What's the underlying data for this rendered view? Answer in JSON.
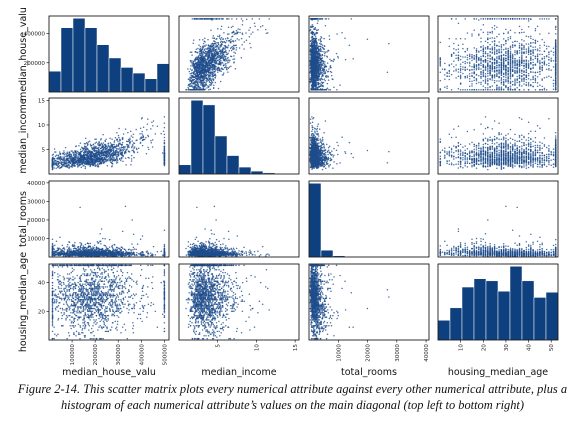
{
  "chart_data": {
    "type": "scatter",
    "subtype": "scatter-matrix",
    "diagonal": "hist",
    "attributes": [
      "median_house_value",
      "median_income",
      "total_rooms",
      "housing_median_age"
    ],
    "axis_labels": {
      "median_house_value": "median_house_valu",
      "median_income": "median_income",
      "total_rooms": "total_rooms",
      "housing_median_age": "housing_median_age"
    },
    "ranges": {
      "median_house_value": [
        0,
        520000
      ],
      "median_income": [
        0,
        15.5
      ],
      "total_rooms": [
        0,
        41000
      ],
      "housing_median_age": [
        0,
        53
      ]
    },
    "yticks": {
      "median_house_value": [
        200000,
        400000
      ],
      "median_income": [
        5,
        10,
        15
      ],
      "total_rooms": [
        10000,
        20000,
        30000,
        40000
      ],
      "housing_median_age": [
        20,
        40
      ]
    },
    "xticks": {
      "median_house_value": [
        100000,
        200000,
        300000,
        400000,
        500000
      ],
      "median_income": [
        5,
        10,
        15
      ],
      "total_rooms": [
        10000,
        20000,
        30000,
        40000
      ],
      "housing_median_age": [
        10,
        20,
        30,
        40,
        50
      ]
    },
    "histograms": {
      "median_house_value": [
        1100,
        3400,
        3900,
        3400,
        2500,
        1800,
        1300,
        1000,
        700,
        1500
      ],
      "median_income": [
        800,
        6400,
        6000,
        3300,
        1600,
        600,
        250,
        100,
        40,
        20
      ],
      "total_rooms": [
        18400,
        1700,
        300,
        100,
        50,
        20,
        10,
        5,
        3,
        1
      ],
      "housing_median_age": [
        950,
        1550,
        2550,
        2950,
        2850,
        2350,
        3550,
        2850,
        2050,
        2300
      ]
    },
    "colors": {
      "marker": "#1f4e8c",
      "bar": "#0e3f7e"
    }
  },
  "caption": "Figure 2-14. This scatter matrix plots every numerical attribute against every other numerical attribute, plus a histogram of each numerical attribute’s values on the main diagonal (top left to bottom right)"
}
